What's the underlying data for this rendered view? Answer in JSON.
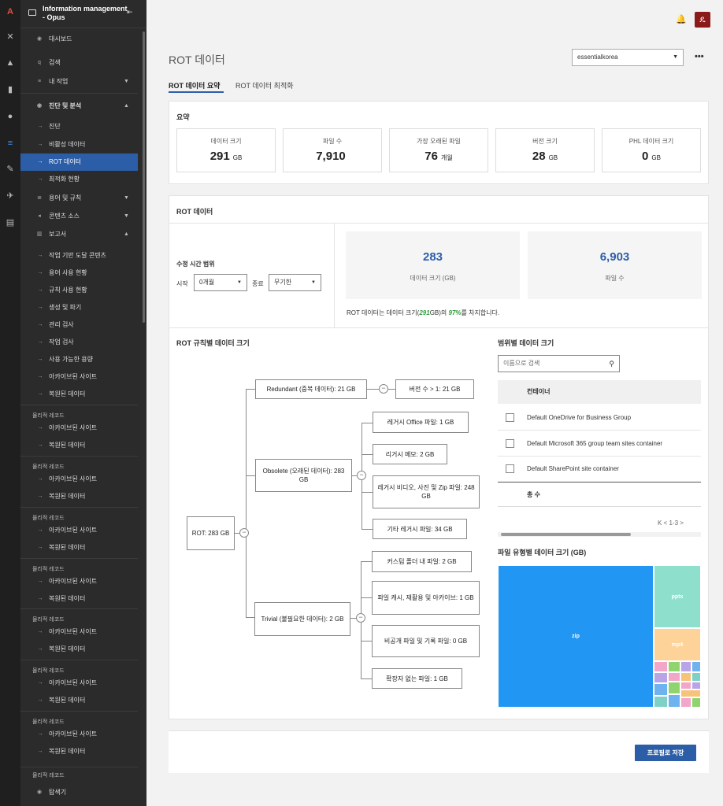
{
  "sidebar": {
    "title": "Information management - Opus",
    "items": [
      {
        "label": "대시보드"
      },
      {
        "label": "검색"
      },
      {
        "label": "내 작업"
      },
      {
        "label": "진단 및 분석"
      },
      {
        "label": "진단"
      },
      {
        "label": "비활성 데이터"
      },
      {
        "label": "ROT 데이터"
      },
      {
        "label": "최적화 현황"
      },
      {
        "label": "용어 및 규칙"
      },
      {
        "label": "콘텐츠 소스"
      },
      {
        "label": "보고서"
      },
      {
        "label": "작업 기반 도달 콘텐츠"
      },
      {
        "label": "용어 사용 현황"
      },
      {
        "label": "규칙 사용 현황"
      },
      {
        "label": "생성 및 파기"
      },
      {
        "label": "관리 검사"
      },
      {
        "label": "작업 검사"
      },
      {
        "label": "사용 가능한 용량"
      },
      {
        "label": "아카이브된 사이트"
      },
      {
        "label": "복원된 데이터"
      }
    ],
    "groups": [
      {
        "caption": "물리적 레코드",
        "a": "아카이브된 사이트",
        "b": "복원된 데이터"
      },
      {
        "caption": "물리적 레코드",
        "a": "아카이브된 사이트",
        "b": "복원된 데이터"
      },
      {
        "caption": "물리적 레코드",
        "a": "아카이브된 사이트",
        "b": "복원된 데이터"
      },
      {
        "caption": "물리적 레코드",
        "a": "아카이브된 사이트",
        "b": "복원된 데이터"
      },
      {
        "caption": "물리적 레코드",
        "a": "아카이브된 사이트",
        "b": "복원된 데이터"
      },
      {
        "caption": "물리적 레코드",
        "a": "아카이브된 사이트",
        "b": "복원된 데이터"
      },
      {
        "caption": "물리적 레코드",
        "a": "아카이브된 사이트",
        "b": "복원된 데이터"
      }
    ],
    "last_caption": "물리적 레코드",
    "last_item": "탐색기"
  },
  "header": {
    "title": "ROT 데이터",
    "tenant": "essentialkorea",
    "more": "•••"
  },
  "tabs": [
    {
      "label": "ROT 데이터 요약"
    },
    {
      "label": "ROT 데이터 최적화"
    }
  ],
  "summary": {
    "title": "요약",
    "stats": [
      {
        "label": "데이터 크기",
        "value": "291",
        "unit": "GB"
      },
      {
        "label": "파일 수",
        "value": "7,910",
        "unit": ""
      },
      {
        "label": "가장 오래된 파일",
        "value": "76",
        "unit": "개월"
      },
      {
        "label": "버전 크기",
        "value": "28",
        "unit": "GB"
      },
      {
        "label": "PHL 데이터 크기",
        "value": "0",
        "unit": "GB"
      }
    ]
  },
  "rot": {
    "title": "ROT 데이터",
    "range_label": "수정 시간 범위",
    "start_label": "시작",
    "start_value": "0개월",
    "end_label": "종료",
    "end_value": "무기한",
    "kpi": [
      {
        "value": "283",
        "label": "데이터 크기 (GB)"
      },
      {
        "value": "6,903",
        "label": "파일 수"
      }
    ],
    "pct_pre": "ROT 데이터는 데이터 크기(",
    "pct_val1": "291",
    "pct_mid": "GB)의 ",
    "pct_val2": "97%",
    "pct_post": "를 차지합니다."
  },
  "tree": {
    "title": "ROT 규칙별 데이터 크기",
    "root": "ROT: 283 GB",
    "redundant": "Redundant (중복 데이터): 21 GB",
    "redundant_child": "버전 수 > 1: 21 GB",
    "obsolete": "Obsolete (오래된 데이터): 283 GB",
    "obsolete_children": [
      "레거시 Office 파일: 1 GB",
      "리거시 메모: 2 GB",
      "레거시 비디오, 사진 및 Zip 파일: 248 GB",
      "기타 레거시 파일: 34 GB"
    ],
    "trivial": "Trivial (불필요한 데이터): 2 GB",
    "trivial_children": [
      "커스텀 폴더 내 파일: 2 GB",
      "파일 캐시, 재활용 및 아카이브: 1 GB",
      "비공개 파일 및 기록 파일: 0 GB",
      "확장자 없는 파일: 1 GB"
    ]
  },
  "scope": {
    "title": "범위별 데이터 크기",
    "search_placeholder": "이름으로 검색",
    "col": "컨테이너",
    "rows": [
      "Default OneDrive for Business Group",
      "Default Microsoft 365 group team sites container",
      "Default SharePoint site container"
    ],
    "total": "총 수",
    "pager": "K  <  1-3  >"
  },
  "filetype": {
    "title": "파일 유형별 데이터 크기 (GB)",
    "labels": {
      "zip": "zip",
      "pptx": "pptx",
      "mp4": "mp4"
    },
    "colors": {
      "zip": "#2196f3",
      "pptx": "#8ee0cc",
      "mp4": "#fdd39a",
      "pink": "#f2a6c9",
      "purple": "#b9a4e8",
      "green": "#90d470",
      "blue2": "#6fb2f0",
      "orange": "#f7c27a",
      "teal": "#7fd1c7"
    }
  },
  "footer": {
    "save": "프로필로 저장"
  }
}
